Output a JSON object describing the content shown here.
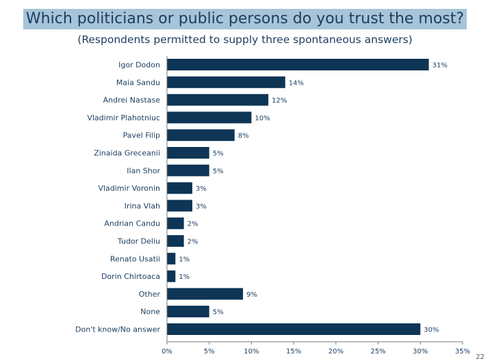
{
  "page_number": "22",
  "colors": {
    "bar": "#0e3555",
    "title_highlight": "#a7c4d9",
    "text": "#1b3d5e"
  },
  "chart_data": {
    "type": "bar",
    "orientation": "horizontal",
    "title": "Which politicians or public persons do you trust the most?",
    "subtitle": "(Respondents permitted to supply three spontaneous answers)",
    "categories": [
      "Igor Dodon",
      "Maia Sandu",
      "Andrei Nastase",
      "Vladimir Plahotniuc",
      "Pavel Filip",
      "Zinaida Greceanii",
      "Ilan Shor",
      "Vladimir Voronin",
      "Irina Vlah",
      "Andrian Candu",
      "Tudor Deliu",
      "Renato Usatii",
      "Dorin Chirtoaca",
      "Other",
      "None",
      "Don't know/No answer"
    ],
    "values": [
      31,
      14,
      12,
      10,
      8,
      5,
      5,
      3,
      3,
      2,
      2,
      1,
      1,
      9,
      5,
      30
    ],
    "value_labels": [
      "31%",
      "14%",
      "12%",
      "10%",
      "8%",
      "5%",
      "5%",
      "3%",
      "3%",
      "2%",
      "2%",
      "1%",
      "1%",
      "9%",
      "5%",
      "30%"
    ],
    "xlim": [
      0,
      35
    ],
    "xticks": [
      0,
      5,
      10,
      15,
      20,
      25,
      30,
      35
    ],
    "xtick_labels": [
      "0%",
      "5%",
      "10%",
      "15%",
      "20%",
      "25%",
      "30%",
      "35%"
    ],
    "grid": false,
    "legend": "none"
  }
}
